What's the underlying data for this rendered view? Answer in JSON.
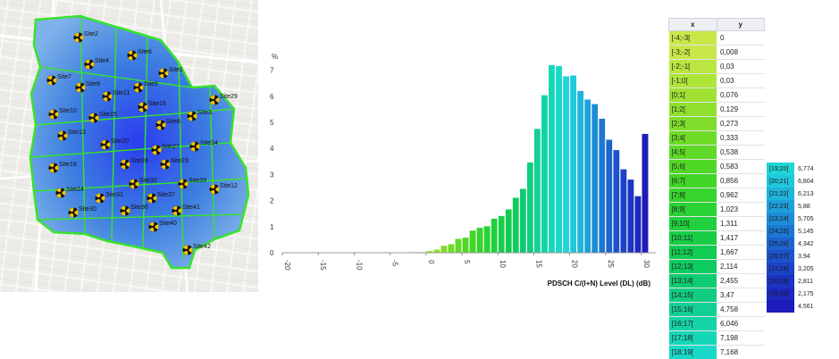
{
  "map": {
    "sites": [
      {
        "name": "Site2"
      },
      {
        "name": "Site4"
      },
      {
        "name": "Site6"
      },
      {
        "name": "Site1"
      },
      {
        "name": "Site7"
      },
      {
        "name": "Site9"
      },
      {
        "name": "Site5"
      },
      {
        "name": "Site11"
      },
      {
        "name": "Site16"
      },
      {
        "name": "Site10"
      },
      {
        "name": "Site15"
      },
      {
        "name": "Site3"
      },
      {
        "name": "Site13"
      },
      {
        "name": "Site20"
      },
      {
        "name": "Site27"
      },
      {
        "name": "Site34"
      },
      {
        "name": "Site18"
      },
      {
        "name": "Site26"
      },
      {
        "name": "Site23"
      },
      {
        "name": "Site32"
      },
      {
        "name": "Site39"
      },
      {
        "name": "Site24"
      },
      {
        "name": "Site31"
      },
      {
        "name": "Site37"
      },
      {
        "name": "Site30"
      },
      {
        "name": "Site36"
      },
      {
        "name": "Site41"
      },
      {
        "name": "Site40"
      },
      {
        "name": "Site42"
      },
      {
        "name": "Site29"
      },
      {
        "name": "Site8"
      },
      {
        "name": "Site12"
      }
    ]
  },
  "chart_data": {
    "type": "bar",
    "ylabel": "%",
    "xlabel": "PDSCH C/(I+N) Level (DL) (dB)",
    "xlim": [
      -20,
      31
    ],
    "ylim": [
      0,
      7.5
    ],
    "xticks": [
      "-20",
      "-15",
      "-10",
      "-5",
      "0",
      "5",
      "10",
      "15",
      "20",
      "25",
      "30"
    ],
    "yticks": [
      "0",
      "1",
      "2",
      "3",
      "4",
      "5",
      "6",
      "7"
    ],
    "bin_start": -4,
    "bins": [
      "[-4;-3[",
      "[-3;-2[",
      "[-2;-1[",
      "[-1;0[",
      "[0;1[",
      "[1;2[",
      "[2;3[",
      "[3;4[",
      "[4;5[",
      "[5;6[",
      "[6;7[",
      "[7;8[",
      "[8;9[",
      "[9;10[",
      "[10;11[",
      "[11;12[",
      "[12;13[",
      "[13;14[",
      "[14;15[",
      "[15;16[",
      "[16;17[",
      "[17;18[",
      "[18;19[",
      "[19;20[",
      "[20;21[",
      "[21;22[",
      "[22;23[",
      "[23;24[",
      "[24;25[",
      "[25;26[",
      "[26;27[",
      "[27;28[",
      "[28;29[",
      "[29;30[",
      "[30;31["
    ],
    "values": [
      0,
      0.008,
      0.03,
      0.03,
      0.076,
      0.129,
      0.273,
      0.333,
      0.538,
      0.583,
      0.856,
      0.962,
      1.023,
      1.311,
      1.417,
      1.667,
      2.114,
      2.455,
      3.47,
      4.758,
      6.046,
      7.198,
      7.168,
      6.774,
      6.804,
      6.213,
      5.88,
      5.705,
      5.145,
      4.342,
      3.94,
      3.205,
      2.811,
      2.175,
      4.561
    ],
    "colors": [
      "#c8e84a",
      "#c8e84a",
      "#b9e63f",
      "#aee539",
      "#9fe233",
      "#8fe02e",
      "#7fde2b",
      "#6fdc28",
      "#5fda26",
      "#50d826",
      "#42d628",
      "#36d42d",
      "#2ad233",
      "#20d03c",
      "#18ce46",
      "#12cc52",
      "#0fcc60",
      "#0ecc70",
      "#10cd82",
      "#12d094",
      "#14d3a6",
      "#16d6b8",
      "#1ad8c8",
      "#1fd6d6",
      "#20c8dc",
      "#1fb4dc",
      "#1ea0da",
      "#1d8cd6",
      "#1c78d2",
      "#1c64ce",
      "#1c52ca",
      "#1c42c6",
      "#1c34c2",
      "#1c28be",
      "#1c1cba"
    ]
  },
  "table": {
    "header_x": "x",
    "header_y": "y",
    "rows": [
      {
        "x": "[-4;-3[",
        "y": "0",
        "color": "#c8e84a"
      },
      {
        "x": "[-3;-2[",
        "y": "0,008",
        "color": "#c8e84a"
      },
      {
        "x": "[-2;-1[",
        "y": "0,03",
        "color": "#b9e63f"
      },
      {
        "x": "[-1;0[",
        "y": "0,03",
        "color": "#aee539"
      },
      {
        "x": "[0;1[",
        "y": "0,076",
        "color": "#9fe233"
      },
      {
        "x": "[1;2[",
        "y": "0,129",
        "color": "#8fe02e"
      },
      {
        "x": "[2;3[",
        "y": "0,273",
        "color": "#7fde2b"
      },
      {
        "x": "[3;4[",
        "y": "0,333",
        "color": "#6fdc28"
      },
      {
        "x": "[4;5[",
        "y": "0,538",
        "color": "#5fda26"
      },
      {
        "x": "[5;6[",
        "y": "0,583",
        "color": "#50d826"
      },
      {
        "x": "[6;7[",
        "y": "0,856",
        "color": "#42d628"
      },
      {
        "x": "[7;8[",
        "y": "0,962",
        "color": "#36d42d"
      },
      {
        "x": "[8;9[",
        "y": "1,023",
        "color": "#2ad233"
      },
      {
        "x": "[9;10[",
        "y": "1,311",
        "color": "#20d03c"
      },
      {
        "x": "[10;11[",
        "y": "1,417",
        "color": "#18ce46"
      },
      {
        "x": "[11;12[",
        "y": "1,667",
        "color": "#12cc52"
      },
      {
        "x": "[12;13[",
        "y": "2,114",
        "color": "#0fcc60"
      },
      {
        "x": "[13;14[",
        "y": "2,455",
        "color": "#0ecc70"
      },
      {
        "x": "[14;15[",
        "y": "3,47",
        "color": "#10cd82"
      },
      {
        "x": "[15;16[",
        "y": "4,758",
        "color": "#12d094"
      },
      {
        "x": "[16;17[",
        "y": "6,046",
        "color": "#14d3a6"
      },
      {
        "x": "[17;18[",
        "y": "7,198",
        "color": "#16d6b8"
      },
      {
        "x": "[18;19[",
        "y": "7,168",
        "color": "#1ad8c8"
      }
    ],
    "rows2": [
      {
        "x": "[19;20[",
        "y": "6,774",
        "color": "#1fd6d6"
      },
      {
        "x": "[20;21[",
        "y": "6,804",
        "color": "#20c8dc"
      },
      {
        "x": "[21;22[",
        "y": "6,213",
        "color": "#1fb4dc"
      },
      {
        "x": "[22;23[",
        "y": "5,88",
        "color": "#1ea0da"
      },
      {
        "x": "[23;24[",
        "y": "5,705",
        "color": "#1d8cd6"
      },
      {
        "x": "[24;25[",
        "y": "5,145",
        "color": "#1c78d2"
      },
      {
        "x": "[25;26[",
        "y": "4,342",
        "color": "#1c64ce"
      },
      {
        "x": "[26;27[",
        "y": "3,94",
        "color": "#1c52ca"
      },
      {
        "x": "[27;28[",
        "y": "3,205",
        "color": "#1c42c6"
      },
      {
        "x": "[28;29[",
        "y": "2,811",
        "color": "#1c34c2"
      },
      {
        "x": "[29;30[",
        "y": "2,175",
        "color": "#1c28be"
      },
      {
        "x": "",
        "y": "4,561",
        "color": "#1c1cba"
      }
    ]
  }
}
